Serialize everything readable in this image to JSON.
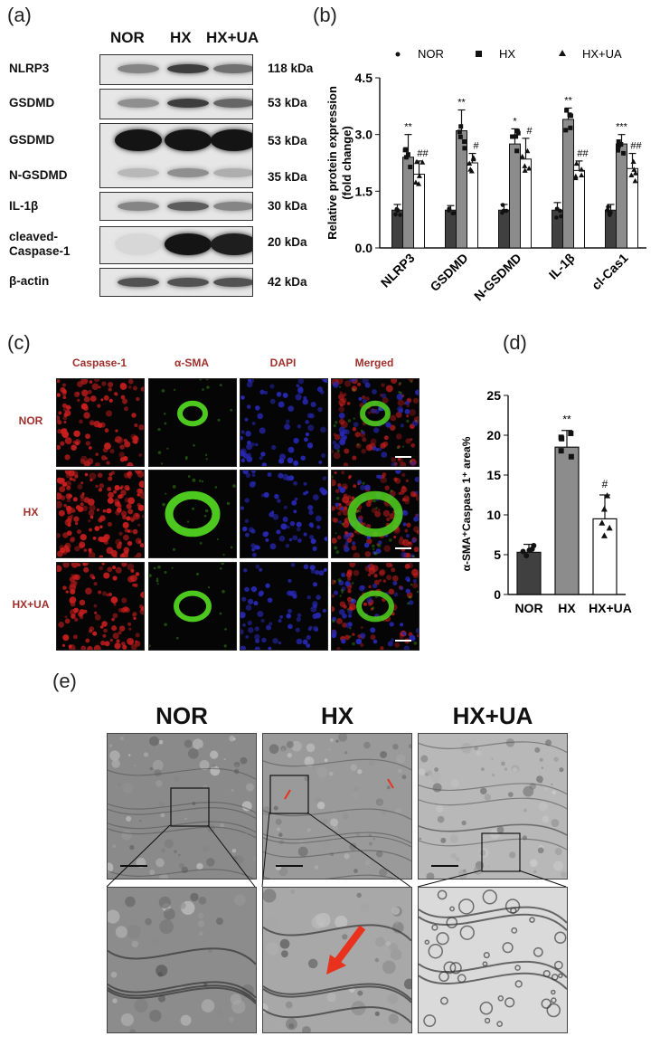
{
  "panels": {
    "a": "(a)",
    "b": "(b)",
    "c": "(c)",
    "d": "(d)",
    "e": "(e)"
  },
  "groups": [
    "NOR",
    "HX",
    "HX+UA"
  ],
  "western_blot": {
    "rows": [
      {
        "label": "NLRP3",
        "kda": "118 kDa"
      },
      {
        "label": "GSDMD",
        "kda": "53 kDa"
      },
      {
        "label": "GSDMD",
        "kda": "53 kDa"
      },
      {
        "label": "N-GSDMD",
        "kda": "35 kDa"
      },
      {
        "label": "IL-1β",
        "kda": "30 kDa"
      },
      {
        "label": "cleaved-Caspase-1",
        "kda": "20 kDa"
      },
      {
        "label": "β-actin",
        "kda": "42 kDa"
      }
    ],
    "band_intensity": [
      [
        0.45,
        0.8,
        0.55
      ],
      [
        0.4,
        0.8,
        0.6
      ],
      [
        1.0,
        1.0,
        1.0
      ],
      [
        0.2,
        0.4,
        0.25
      ],
      [
        0.45,
        0.65,
        0.45
      ],
      [
        0.05,
        1.0,
        0.95
      ],
      [
        0.7,
        0.7,
        0.7
      ]
    ]
  },
  "if_panel": {
    "columns": [
      "Caspase-1",
      "α-SMA",
      "DAPI",
      "Merged"
    ],
    "rows": [
      "NOR",
      "HX",
      "HX+UA"
    ],
    "colors": {
      "caspase": "#c81e1e",
      "sma": "#4dc81e",
      "dapi": "#2828b4"
    }
  },
  "em_panel": {
    "columns": [
      "NOR",
      "HX",
      "HX+UA"
    ],
    "arrow_color": "#e8321e"
  },
  "chart_data": [
    {
      "id": "b",
      "type": "bar",
      "ylabel": "Relative protein expression\n(fold change)",
      "ylim": [
        0,
        4.5
      ],
      "yticks": [
        "0.0",
        "1.5",
        "3.0",
        "4.5"
      ],
      "categories": [
        "NLRP3",
        "GSDMD",
        "N-GSDMD",
        "IL-1β",
        "cl-Cas1"
      ],
      "legend": [
        "NOR",
        "HX",
        "HX+UA"
      ],
      "legend_position": "top",
      "series": [
        {
          "name": "NOR",
          "color": "#404040",
          "values": [
            1.0,
            1.0,
            1.0,
            1.0,
            1.0
          ],
          "sd": [
            0.15,
            0.12,
            0.15,
            0.2,
            0.15
          ]
        },
        {
          "name": "HX",
          "color": "#8c8c8c",
          "values": [
            2.4,
            3.1,
            2.75,
            3.4,
            2.75
          ],
          "sd": [
            0.6,
            0.55,
            0.4,
            0.3,
            0.25
          ]
        },
        {
          "name": "HX+UA",
          "color": "#ffffff",
          "values": [
            1.95,
            2.25,
            2.35,
            2.05,
            2.1
          ],
          "sd": [
            0.35,
            0.25,
            0.55,
            0.25,
            0.4
          ]
        }
      ],
      "significance": {
        "HX": [
          "**",
          "**",
          "*",
          "**",
          "***"
        ],
        "HX+UA": [
          "##",
          "#",
          "#",
          "##",
          "##"
        ]
      }
    },
    {
      "id": "d",
      "type": "bar",
      "ylabel": "α-SMA⁺Caspase 1⁺ area%",
      "ylim": [
        0,
        25
      ],
      "yticks": [
        "0",
        "5",
        "10",
        "15",
        "20",
        "25"
      ],
      "categories": [
        "NOR",
        "HX",
        "HX+UA"
      ],
      "colors": [
        "#404040",
        "#8c8c8c",
        "#ffffff"
      ],
      "values": [
        5.3,
        18.5,
        9.5
      ],
      "sd": [
        1.0,
        2.1,
        3.0
      ],
      "significance": [
        "",
        "**",
        "#"
      ]
    }
  ]
}
